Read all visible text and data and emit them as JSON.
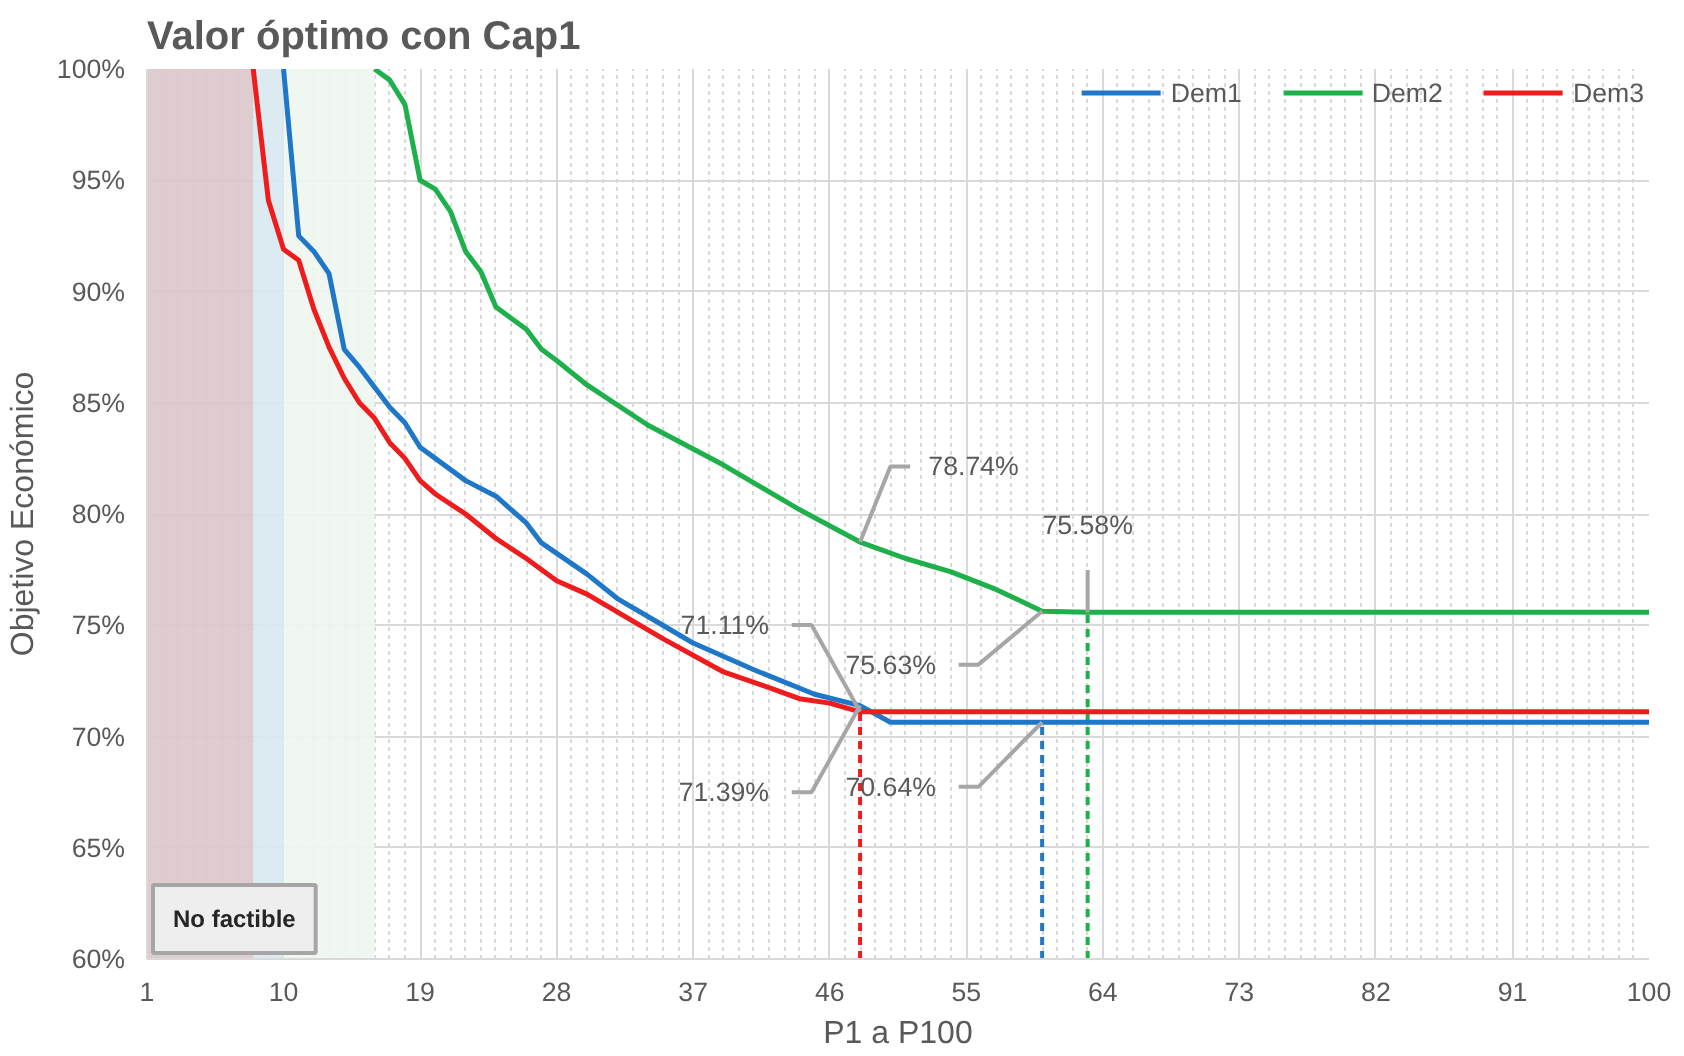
{
  "chart_data": {
    "type": "line",
    "title": "Valor óptimo con Cap1",
    "xlabel": "P1 a P100",
    "ylabel": "Objetivo Económico",
    "xlim": [
      1,
      100
    ],
    "xticks": [
      1,
      10,
      19,
      28,
      37,
      46,
      55,
      64,
      73,
      82,
      91,
      100
    ],
    "ylim": [
      60,
      100
    ],
    "yticks": [
      {
        "value": 60,
        "label": "60%"
      },
      {
        "value": 65,
        "label": "65%"
      },
      {
        "value": 70,
        "label": "70%"
      },
      {
        "value": 75,
        "label": "75%"
      },
      {
        "value": 80,
        "label": "80%"
      },
      {
        "value": 85,
        "label": "85%"
      },
      {
        "value": 90,
        "label": "90%"
      },
      {
        "value": 95,
        "label": "95%"
      },
      {
        "value": 100,
        "label": "100%"
      }
    ],
    "grid": true,
    "legend": "top right",
    "line_style": "solid",
    "marker": "none",
    "series": [
      {
        "name": "Dem1",
        "color": "#1f77c8",
        "x": [
          10,
          11,
          12,
          13,
          14,
          15,
          16,
          17,
          18,
          19,
          20,
          22,
          24,
          26,
          27,
          30,
          32,
          35,
          37,
          41,
          45,
          48,
          50,
          60,
          100
        ],
        "values": [
          100,
          92.5,
          91.8,
          90.8,
          87.4,
          86.6,
          85.7,
          84.8,
          84.1,
          83.0,
          82.5,
          81.5,
          80.8,
          79.6,
          78.7,
          77.3,
          76.2,
          75.0,
          74.2,
          73.0,
          71.9,
          71.39,
          70.64,
          70.64,
          70.64
        ]
      },
      {
        "name": "Dem2",
        "color": "#1db04b",
        "x": [
          16,
          17,
          18,
          19,
          20,
          21,
          22,
          23,
          24,
          25,
          26,
          27,
          28,
          30,
          34,
          39,
          44,
          48,
          51,
          54,
          57,
          60,
          63,
          100
        ],
        "values": [
          100,
          99.5,
          98.4,
          95,
          94.6,
          93.6,
          91.8,
          90.9,
          89.3,
          88.8,
          88.3,
          87.4,
          86.9,
          85.8,
          84.0,
          82.2,
          80.2,
          78.74,
          78.0,
          77.4,
          76.6,
          75.63,
          75.58,
          75.58
        ]
      },
      {
        "name": "Dem3",
        "color": "#ee1c1c",
        "x": [
          8,
          9,
          10,
          11,
          12,
          13,
          14,
          15,
          16,
          17,
          18,
          19,
          20,
          22,
          24,
          26,
          28,
          30,
          33,
          35,
          39,
          42,
          44,
          46,
          48,
          100
        ],
        "values": [
          100,
          94.1,
          91.9,
          91.4,
          89.2,
          87.5,
          86.1,
          85.0,
          84.3,
          83.2,
          82.5,
          81.5,
          80.9,
          80.0,
          78.9,
          78.0,
          77.0,
          76.4,
          75.2,
          74.4,
          72.9,
          72.2,
          71.7,
          71.5,
          71.11,
          71.11
        ]
      }
    ],
    "bands": [
      {
        "axis": "x",
        "from": 1,
        "to": 8,
        "color": "#dcc6ca"
      },
      {
        "axis": "x",
        "from": 8,
        "to": 10,
        "color": "#d8e9ef"
      },
      {
        "axis": "x",
        "from": 10,
        "to": 16,
        "color": "#eef6ee"
      }
    ],
    "ref_lines": [
      {
        "axis": "x",
        "value": 48,
        "color": "#ee1c1c",
        "line_style": "dashed"
      },
      {
        "axis": "x",
        "value": 60,
        "color": "#1f77c8",
        "line_style": "dashed"
      },
      {
        "axis": "x",
        "value": 63,
        "color": "#1db04b",
        "line_style": "dashed"
      }
    ],
    "annotations": [
      {
        "text": "78.74%",
        "x": 48,
        "y": 78.74
      },
      {
        "text": "75.58%",
        "x": 63,
        "y": 75.58
      },
      {
        "text": "71.11%",
        "x": 48,
        "y": 71.11
      },
      {
        "text": "75.63%",
        "x": 60,
        "y": 75.63
      },
      {
        "text": "71.39%",
        "x": 48,
        "y": 71.39
      },
      {
        "text": "70.64%",
        "x": 60,
        "y": 70.64
      },
      "No factible"
    ]
  }
}
